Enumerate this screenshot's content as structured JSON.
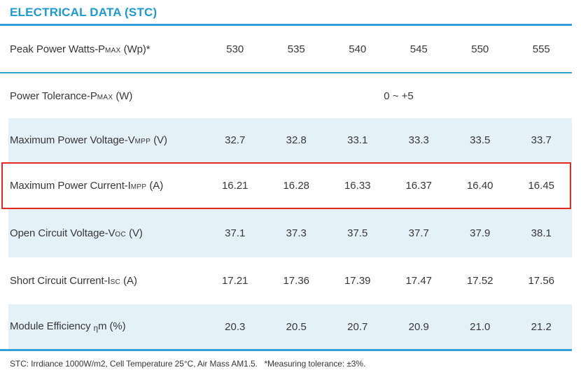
{
  "title": "ELECTRICAL DATA (STC)",
  "colors": {
    "accent_blue": "#1d9ad6",
    "rule_blue": "#35a0d7",
    "row_shade": "#e4f1f9",
    "highlight_red": "#e22a21",
    "text_dark": "#3a3738"
  },
  "table": {
    "rows": [
      {
        "label_main": "Peak Power Watts-P",
        "label_sub": "MAX",
        "label_tail": " (Wp)*",
        "values": [
          "530",
          "535",
          "540",
          "545",
          "550",
          "555"
        ]
      },
      {
        "label_main": "Power Tolerance-P",
        "label_sub": "MAX",
        "label_tail": " (W)",
        "merged_value": "0 ~ +5"
      },
      {
        "label_main": "Maximum Power Voltage-V",
        "label_sub": "MPP",
        "label_tail": " (V)",
        "values": [
          "32.7",
          "32.8",
          "33.1",
          "33.3",
          "33.5",
          "33.7"
        ]
      },
      {
        "label_main": "Maximum Power Current-I",
        "label_sub": "MPP",
        "label_tail": " (A)",
        "highlighted": true,
        "values": [
          "16.21",
          "16.28",
          "16.33",
          "16.37",
          "16.40",
          "16.45"
        ]
      },
      {
        "label_main": "Open Circuit Voltage-V",
        "label_sub": "OC",
        "label_tail": " (V)",
        "values": [
          "37.1",
          "37.3",
          "37.5",
          "37.7",
          "37.9",
          "38.1"
        ]
      },
      {
        "label_main": "Short Circuit Current-I",
        "label_sub": "SC",
        "label_tail": " (A)",
        "values": [
          "17.21",
          "17.36",
          "17.39",
          "17.47",
          "17.52",
          "17.56"
        ]
      },
      {
        "label_main": "Module Efficiency ",
        "label_sub": "η",
        "label_tail": "m (%)",
        "values": [
          "20.3",
          "20.5",
          "20.7",
          "20.9",
          "21.0",
          "21.2"
        ]
      }
    ]
  },
  "footnote": "STC: Irrdiance 1000W/m2, Cell Temperature 25°C, Air Mass AM1.5.   *Measuring tolerance: ±3%."
}
